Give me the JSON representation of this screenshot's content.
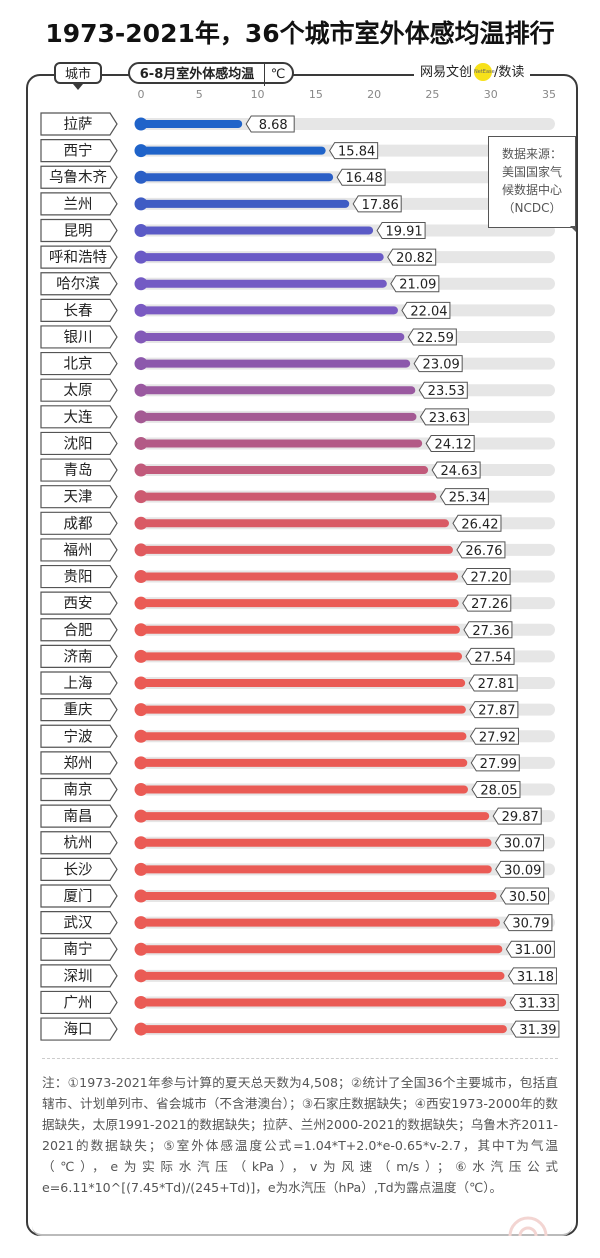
{
  "title": "1973-2021年，36个城市室外体感均温排行",
  "header": {
    "city_tab": "城市",
    "metric_label": "6-8月室外体感均温",
    "metric_unit": "℃",
    "brand_left": "网易",
    "brand_mid": "文创",
    "brand_dot": "NetEase",
    "brand_right": "/数读"
  },
  "source_box": {
    "lines": [
      "数据来源：",
      "美国国家气",
      "候数据中心",
      "（NCDC）"
    ]
  },
  "colors": {
    "blue": "#1f63c9",
    "purple": "#7a5bc2",
    "mauve": "#a45a93",
    "red": "#ea5b55",
    "track": "#e6e6e6"
  },
  "chart_data": {
    "type": "bar",
    "orientation": "horizontal",
    "title": "6-8月室外体感均温",
    "unit": "℃",
    "xlim": [
      0,
      35
    ],
    "xticks": [
      0,
      5,
      10,
      15,
      20,
      25,
      30,
      35
    ],
    "categories": [
      "拉萨",
      "西宁",
      "乌鲁木齐",
      "兰州",
      "昆明",
      "呼和浩特",
      "哈尔滨",
      "长春",
      "银川",
      "北京",
      "太原",
      "大连",
      "沈阳",
      "青岛",
      "天津",
      "成都",
      "福州",
      "贵阳",
      "西安",
      "合肥",
      "济南",
      "上海",
      "重庆",
      "宁波",
      "郑州",
      "南京",
      "南昌",
      "杭州",
      "长沙",
      "厦门",
      "武汉",
      "南宁",
      "深圳",
      "广州",
      "海口"
    ],
    "values": [
      8.68,
      15.84,
      16.48,
      17.86,
      19.91,
      20.82,
      21.09,
      22.04,
      22.59,
      23.09,
      23.53,
      23.63,
      24.12,
      24.63,
      25.34,
      26.42,
      26.76,
      27.2,
      27.26,
      27.36,
      27.54,
      27.81,
      27.87,
      27.92,
      27.99,
      28.05,
      29.87,
      30.07,
      30.09,
      30.5,
      30.79,
      31.0,
      31.18,
      31.33,
      31.39
    ],
    "value_labels": [
      "8.68",
      "15.84",
      "16.48",
      "17.86",
      "19.91",
      "20.82",
      "21.09",
      "22.04",
      "22.59",
      "23.09",
      "23.53",
      "23.63",
      "24.12",
      "24.63",
      "25.34",
      "26.42",
      "26.76",
      "27.20",
      "27.26",
      "27.36",
      "27.54",
      "27.81",
      "27.87",
      "27.92",
      "27.99",
      "28.05",
      "29.87",
      "30.07",
      "30.09",
      "30.50",
      "30.79",
      "31.00",
      "31.18",
      "31.33",
      "31.39"
    ],
    "bar_colors": [
      "#1f63c9",
      "#1f63c9",
      "#2b5fc6",
      "#3f5cc4",
      "#5a5ac6",
      "#6a5ac6",
      "#735ac4",
      "#7a5ac2",
      "#835ab8",
      "#8c58ac",
      "#9a59a0",
      "#a45a93",
      "#b35a86",
      "#c15a7b",
      "#cd5a70",
      "#d95a65",
      "#e05a5e",
      "#e65b59",
      "#ea5b55",
      "#ea5b55",
      "#ea5b55",
      "#ea5b55",
      "#ea5b55",
      "#ea5b55",
      "#ea5b55",
      "#ea5b55",
      "#ea5b55",
      "#ea5b55",
      "#ea5b55",
      "#ea5b55",
      "#ea5b55",
      "#ea5b55",
      "#ea5b55",
      "#ea5b55",
      "#ea5b55"
    ]
  },
  "notes": "注：①1973-2021年参与计算的夏天总天数为4,508；②统计了全国36个主要城市，包括直辖市、计划单列市、省会城市（不含港澳台）；③石家庄数据缺失；④西安1973-2000年的数据缺失，太原1991-2021的数据缺失；拉萨、兰州2000-2021的数据缺失；乌鲁木齐2011-2021的数据缺失；⑤室外体感温度公式=1.04*T+2.0*e-0.65*v-2.7，其中T为气温（℃），e为实际水汽压（kPa），v为风速（m/s）；⑥水汽压公式e=6.11*10^[(7.45*Td)/(245+Td)]，e为水汽压（hPa）,Td为露点温度（℃）。"
}
